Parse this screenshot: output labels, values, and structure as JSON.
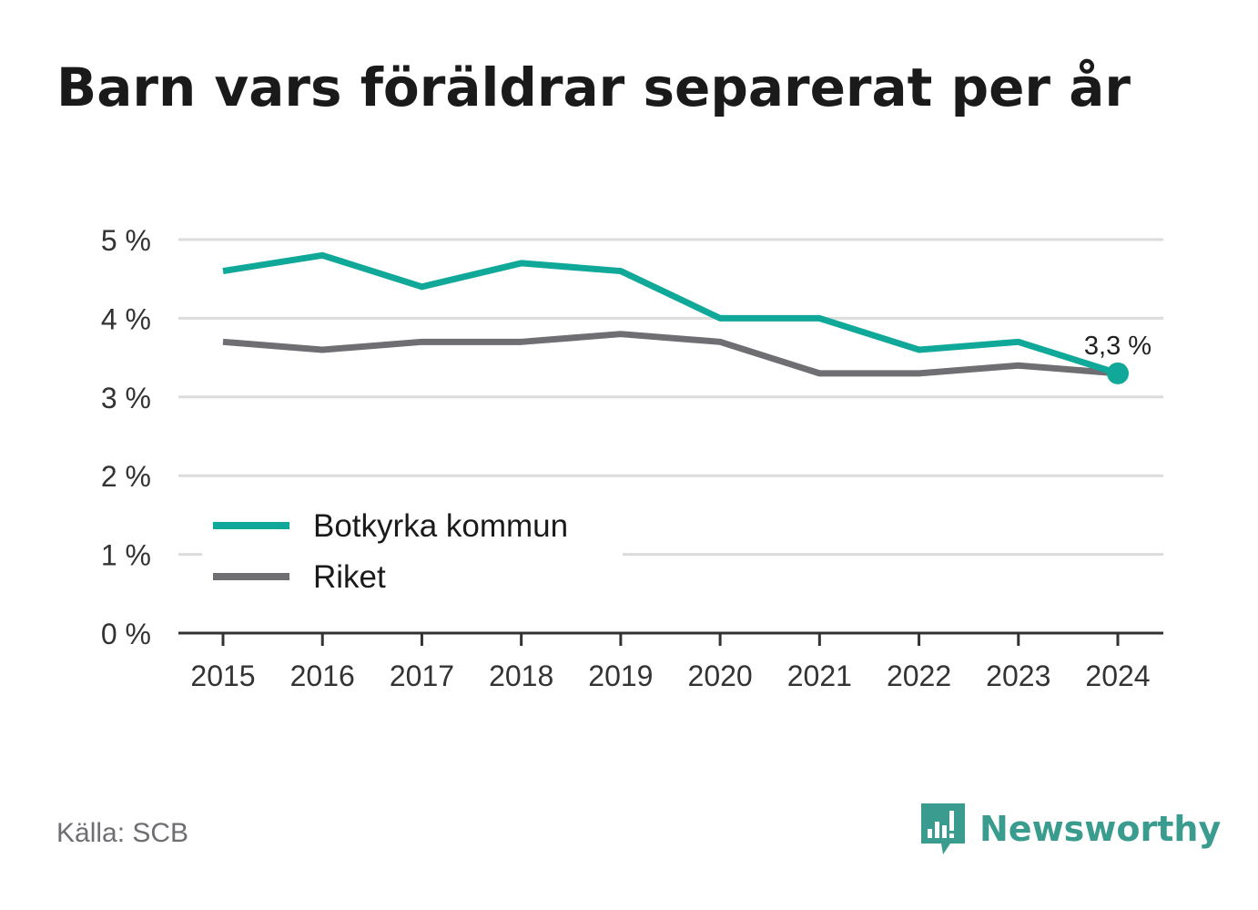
{
  "header": {
    "title": "Barn vars föräldrar separerat per år"
  },
  "footer": {
    "source": "Källa: SCB",
    "brand_name": "Newsworthy"
  },
  "colors": {
    "botkyrka": "#10a899",
    "riket": "#6e6e73",
    "grid": "#dcdcdc",
    "axis": "#333333",
    "brand": "#3a9b8f"
  },
  "chart_data": {
    "type": "line",
    "x": [
      "2015",
      "2016",
      "2017",
      "2018",
      "2019",
      "2020",
      "2021",
      "2022",
      "2023",
      "2024"
    ],
    "series": [
      {
        "name": "Botkyrka kommun",
        "color": "#10a899",
        "values": [
          4.6,
          4.8,
          4.4,
          4.7,
          4.6,
          4.0,
          4.0,
          3.6,
          3.7,
          3.3
        ]
      },
      {
        "name": "Riket",
        "color": "#6e6e73",
        "values": [
          3.7,
          3.6,
          3.7,
          3.7,
          3.8,
          3.7,
          3.3,
          3.3,
          3.4,
          3.3
        ]
      }
    ],
    "y_ticks": [
      {
        "value": 0,
        "label": "0 %"
      },
      {
        "value": 1,
        "label": "1 %"
      },
      {
        "value": 2,
        "label": "2 %"
      },
      {
        "value": 3,
        "label": "3 %"
      },
      {
        "value": 4,
        "label": "4 %"
      },
      {
        "value": 5,
        "label": "5 %"
      }
    ],
    "ylim": [
      0,
      5
    ],
    "end_label": "3,3 %",
    "grid": true,
    "legend_position": "bottom-left"
  }
}
